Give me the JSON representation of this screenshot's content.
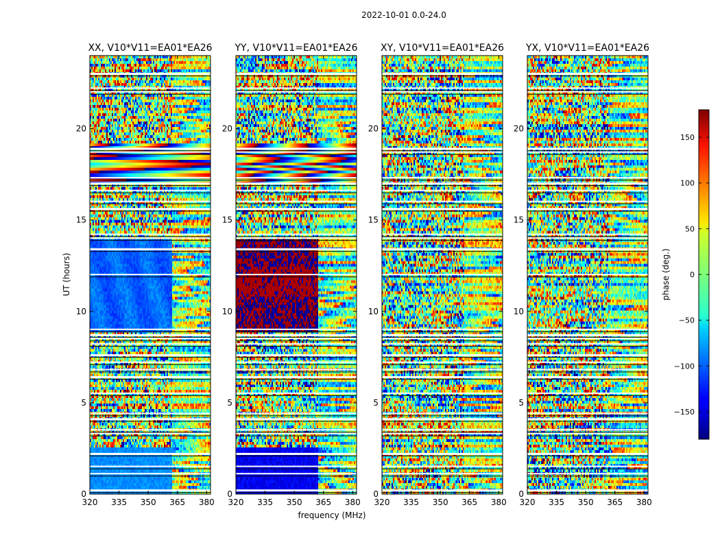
{
  "figure_title": "2022-10-01 0.0-24.0",
  "chart_data": [
    {
      "type": "heatmap",
      "title": "XX, V10*V11=EA01*EA26",
      "xlabel": "",
      "ylabel": "UT (hours)",
      "xlim": [
        320,
        382
      ],
      "ylim": [
        0,
        24
      ],
      "x_ticks": [
        "320",
        "335",
        "350",
        "365",
        "380"
      ],
      "y_ticks": [
        "0",
        "5",
        "10",
        "15",
        "20"
      ],
      "pattern": "xx"
    },
    {
      "type": "heatmap",
      "title": "YY, V10*V11=EA01*EA26",
      "xlabel": "frequency (MHz)",
      "ylabel": "",
      "xlim": [
        320,
        382
      ],
      "ylim": [
        0,
        24
      ],
      "x_ticks": [
        "320",
        "335",
        "350",
        "365",
        "380"
      ],
      "y_ticks": [
        "0",
        "5",
        "10",
        "15",
        "20"
      ],
      "pattern": "yy"
    },
    {
      "type": "heatmap",
      "title": "XY, V10*V11=EA01*EA26",
      "xlabel": "",
      "ylabel": "",
      "xlim": [
        320,
        382
      ],
      "ylim": [
        0,
        24
      ],
      "x_ticks": [
        "320",
        "335",
        "350",
        "365",
        "380"
      ],
      "y_ticks": [
        "0",
        "5",
        "10",
        "15",
        "20"
      ],
      "pattern": "cross"
    },
    {
      "type": "heatmap",
      "title": "YX, V10*V11=EA01*EA26",
      "xlabel": "",
      "ylabel": "",
      "xlim": [
        320,
        382
      ],
      "ylim": [
        0,
        24
      ],
      "x_ticks": [
        "320",
        "335",
        "350",
        "365",
        "380"
      ],
      "y_ticks": [
        "0",
        "5",
        "10",
        "15",
        "20"
      ],
      "pattern": "cross"
    }
  ],
  "colorbar": {
    "label": "phase (deg.)",
    "range": [
      -180,
      180
    ],
    "ticks": [
      "150",
      "100",
      "50",
      "0",
      "−50",
      "−100",
      "−150"
    ],
    "tick_values": [
      150,
      100,
      50,
      0,
      -50,
      -100,
      -150
    ],
    "colormap": "jet"
  },
  "flagged_gap_rows_ut": [
    0.2,
    1.1,
    1.5,
    2.2,
    3.3,
    3.5,
    4.1,
    4.4,
    5.5,
    6.4,
    6.8,
    7.2,
    7.6,
    8.2,
    8.5,
    8.7,
    9.0,
    12.0,
    13.4,
    14.0,
    14.2,
    15.6,
    16.0,
    16.6,
    17.0,
    17.3,
    18.7,
    18.9,
    22.0,
    22.2,
    23.0
  ]
}
